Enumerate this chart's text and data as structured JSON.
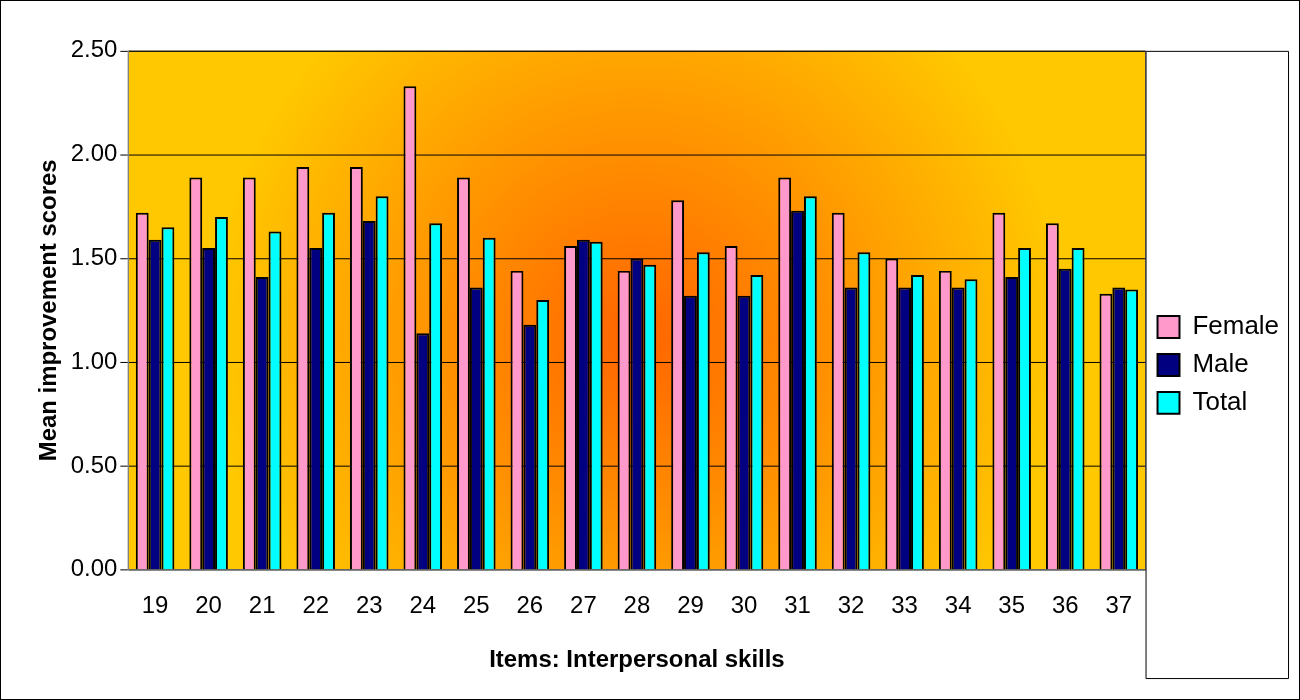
{
  "chart_data": {
    "type": "bar",
    "xlabel": "Items: Interpersonal skills",
    "ylabel": "Mean improvement scores",
    "categories": [
      "19",
      "20",
      "21",
      "22",
      "23",
      "24",
      "25",
      "26",
      "27",
      "28",
      "29",
      "30",
      "31",
      "32",
      "33",
      "34",
      "35",
      "36",
      "37"
    ],
    "series": [
      {
        "name": "Female",
        "color": "#ff99cc",
        "values": [
          1.72,
          1.89,
          1.89,
          1.94,
          1.94,
          2.33,
          1.89,
          1.44,
          1.56,
          1.44,
          1.78,
          1.56,
          1.89,
          1.72,
          1.5,
          1.44,
          1.72,
          1.67,
          1.33
        ]
      },
      {
        "name": "Male",
        "color": "#000080",
        "values": [
          1.59,
          1.55,
          1.41,
          1.55,
          1.68,
          1.14,
          1.36,
          1.18,
          1.59,
          1.5,
          1.32,
          1.32,
          1.73,
          1.36,
          1.36,
          1.36,
          1.41,
          1.45,
          1.36
        ]
      },
      {
        "name": "Total",
        "color": "#00ffff",
        "values": [
          1.65,
          1.7,
          1.63,
          1.72,
          1.8,
          1.67,
          1.6,
          1.3,
          1.58,
          1.47,
          1.53,
          1.42,
          1.8,
          1.53,
          1.42,
          1.4,
          1.55,
          1.55,
          1.35
        ]
      }
    ],
    "ylim": [
      0,
      2.5
    ],
    "yticks": [
      {
        "value": 0,
        "label": "0.00"
      },
      {
        "value": 0.5,
        "label": "0.50"
      },
      {
        "value": 1,
        "label": "1.00"
      },
      {
        "value": 1.5,
        "label": "1.50"
      },
      {
        "value": 2,
        "label": "2.00"
      },
      {
        "value": 2.5,
        "label": "2.50"
      }
    ],
    "grid": "y",
    "legend": "right"
  }
}
